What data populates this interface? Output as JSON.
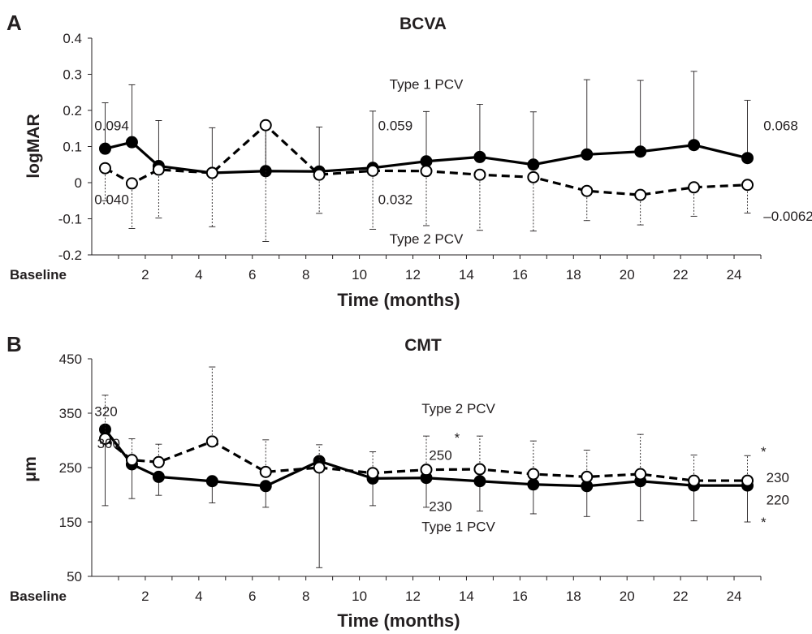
{
  "chart_data": [
    {
      "panel_letter": "A",
      "type": "line",
      "title": "BCVA",
      "xlabel": "Time (months)",
      "ylabel": "logMAR",
      "x_tick_labels": [
        "Baseline",
        "2",
        "4",
        "6",
        "8",
        "10",
        "12",
        "14",
        "16",
        "18",
        "20",
        "22",
        "24"
      ],
      "x": [
        0.5,
        1.5,
        2.5,
        4.5,
        6.5,
        8.5,
        10.5,
        12.5,
        14.5,
        16.5,
        18.5,
        20.5,
        22.5,
        24.5
      ],
      "xlim": [
        0,
        25
      ],
      "ylim": [
        -0.2,
        0.4
      ],
      "y_ticks": [
        "-0.2",
        "-0.1",
        "0",
        "0.1",
        "0.2",
        "0.3",
        "0.4"
      ],
      "series": [
        {
          "name": "Type 1 PCV",
          "style": "solid",
          "marker": "filled-circle",
          "values": [
            0.094,
            0.112,
            0.046,
            0.027,
            0.032,
            0.031,
            0.041,
            0.059,
            0.071,
            0.05,
            0.078,
            0.086,
            0.104,
            0.068
          ],
          "error_upper": [
            0.221,
            0.271,
            0.172,
            0.152,
            0.155,
            0.154,
            0.198,
            0.197,
            0.217,
            0.196,
            0.285,
            0.283,
            0.308,
            0.228
          ],
          "label_pos": [
            12.5,
            0.26
          ]
        },
        {
          "name": "Type 2 PCV",
          "style": "dashed",
          "marker": "open-circle",
          "values": [
            0.04,
            -0.002,
            0.036,
            0.027,
            0.159,
            0.022,
            0.033,
            0.032,
            0.022,
            0.015,
            -0.023,
            -0.034,
            -0.013,
            -0.0062
          ],
          "error_lower": [
            -0.05,
            -0.127,
            -0.098,
            -0.122,
            -0.163,
            -0.085,
            -0.129,
            -0.119,
            -0.132,
            -0.134,
            -0.105,
            -0.117,
            -0.093,
            -0.084
          ],
          "label_pos": [
            12.5,
            -0.168
          ]
        }
      ],
      "annotations": [
        {
          "text": "0.094",
          "pos": [
            0.1,
            0.145
          ]
        },
        {
          "text": "0.040",
          "pos": [
            0.1,
            -0.06
          ]
        },
        {
          "text": "0.059",
          "pos": [
            10.7,
            0.145
          ]
        },
        {
          "text": "0.032",
          "pos": [
            10.7,
            -0.06
          ]
        },
        {
          "text": "0.068",
          "pos": [
            25.1,
            0.145
          ]
        },
        {
          "text": "–0.0062",
          "pos": [
            25.1,
            -0.106
          ]
        }
      ]
    },
    {
      "panel_letter": "B",
      "type": "line",
      "title": "CMT",
      "xlabel": "Time (months)",
      "ylabel": "μm",
      "x_tick_labels": [
        "Baseline",
        "2",
        "4",
        "6",
        "8",
        "10",
        "12",
        "14",
        "16",
        "18",
        "20",
        "22",
        "24"
      ],
      "x": [
        0.5,
        1.5,
        2.5,
        4.5,
        6.5,
        8.5,
        10.5,
        12.5,
        14.5,
        16.5,
        18.5,
        20.5,
        22.5,
        24.5
      ],
      "xlim": [
        0,
        25
      ],
      "ylim": [
        50,
        450
      ],
      "y_ticks": [
        "50",
        "150",
        "250",
        "350",
        "450"
      ],
      "series": [
        {
          "name": "Type 1 PCV",
          "style": "solid",
          "marker": "filled-circle",
          "values": [
            320,
            256,
            233,
            225,
            216,
            262,
            230,
            231,
            225,
            219,
            216,
            225,
            217,
            217
          ],
          "error_lower": [
            180,
            193,
            199,
            185,
            177,
            66,
            180,
            177,
            170,
            165,
            160,
            152,
            152,
            150
          ],
          "label_pos": [
            13.7,
            133
          ]
        },
        {
          "name": "Type 2 PCV",
          "style": "dashed",
          "marker": "open-circle",
          "values": [
            303,
            264,
            260,
            298,
            242,
            250,
            240,
            246,
            247,
            238,
            233,
            238,
            226,
            226
          ],
          "error_upper": [
            383,
            303,
            293,
            435,
            301,
            292,
            279,
            308,
            308,
            299,
            282,
            311,
            273,
            272
          ],
          "label_pos": [
            13.7,
            350
          ]
        }
      ],
      "annotations": [
        {
          "text": "320",
          "pos": [
            0.1,
            345
          ]
        },
        {
          "text": "300",
          "pos": [
            0.2,
            286
          ]
        },
        {
          "text": "250",
          "pos": [
            12.6,
            264
          ]
        },
        {
          "text": "230",
          "pos": [
            12.6,
            170
          ]
        },
        {
          "text": "230",
          "pos": [
            25.2,
            223
          ]
        },
        {
          "text": "220",
          "pos": [
            25.2,
            182
          ]
        },
        {
          "text": "*",
          "pos": [
            13.55,
            296
          ]
        },
        {
          "text": "*",
          "pos": [
            25.0,
            271
          ]
        },
        {
          "text": "*",
          "pos": [
            25.0,
            141
          ]
        }
      ]
    }
  ]
}
